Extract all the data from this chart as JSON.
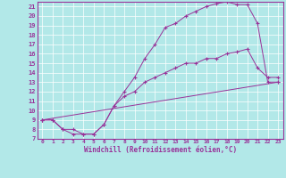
{
  "xlabel": "Windchill (Refroidissement éolien,°C)",
  "bg_color": "#b2e8e8",
  "grid_color": "#ffffff",
  "line_color": "#993399",
  "xlim": [
    -0.5,
    23.5
  ],
  "ylim": [
    7,
    21.5
  ],
  "xticks": [
    0,
    1,
    2,
    3,
    4,
    5,
    6,
    7,
    8,
    9,
    10,
    11,
    12,
    13,
    14,
    15,
    16,
    17,
    18,
    19,
    20,
    21,
    22,
    23
  ],
  "yticks": [
    7,
    8,
    9,
    10,
    11,
    12,
    13,
    14,
    15,
    16,
    17,
    18,
    19,
    20,
    21
  ],
  "line2_x": [
    0,
    1,
    2,
    3,
    4,
    5,
    6,
    7,
    8,
    9,
    10,
    11,
    12,
    13,
    14,
    15,
    16,
    17,
    18,
    19,
    20,
    21,
    22,
    23
  ],
  "line2_y": [
    9,
    9,
    8,
    7.5,
    7.5,
    7.5,
    8.5,
    10.5,
    12,
    13.5,
    15.5,
    17,
    18.8,
    19.2,
    20,
    20.5,
    21,
    21.3,
    21.5,
    21.2,
    21.2,
    19.2,
    13,
    13
  ],
  "line1_x": [
    0,
    1,
    2,
    3,
    4,
    5,
    6,
    7,
    8,
    9,
    10,
    11,
    12,
    13,
    14,
    15,
    16,
    17,
    18,
    19,
    20,
    21,
    22,
    23
  ],
  "line1_y": [
    9,
    9,
    8,
    8,
    7.5,
    7.5,
    8.5,
    10.5,
    11.5,
    12,
    13,
    13.5,
    14,
    14.5,
    15,
    15,
    15.5,
    15.5,
    16,
    16.2,
    16.5,
    14.5,
    13.5,
    13.5
  ],
  "line3_x": [
    0,
    23
  ],
  "line3_y": [
    9,
    13
  ]
}
